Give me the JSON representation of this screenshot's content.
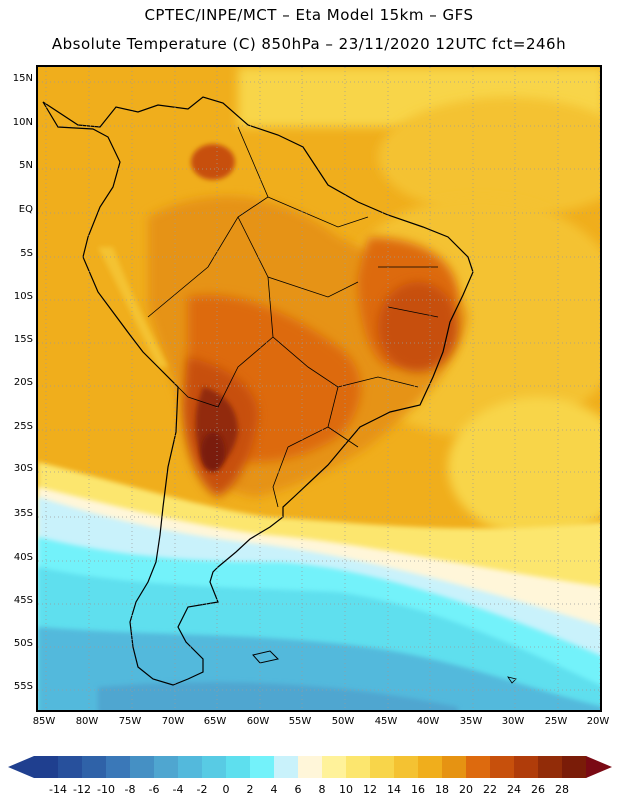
{
  "title": {
    "line1": "CPTEC/INPE/MCT –  Eta Model 15km – GFS",
    "line2": "Absolute Temperature (C) 850hPa – 23/11/2020 12UTC fct=246h"
  },
  "y_axis_labels": [
    "15N",
    "10N",
    "5N",
    "EQ",
    "5S",
    "10S",
    "15S",
    "20S",
    "25S",
    "30S",
    "35S",
    "40S",
    "45S",
    "50S",
    "55S"
  ],
  "x_axis_labels": [
    "85W",
    "80W",
    "75W",
    "70W",
    "65W",
    "60W",
    "55W",
    "50W",
    "45W",
    "40W",
    "35W",
    "30W",
    "25W",
    "20W"
  ],
  "colorbar": {
    "labels": [
      "-14",
      "-12",
      "-10",
      "-8",
      "-6",
      "-4",
      "-2",
      "0",
      "2",
      "4",
      "6",
      "8",
      "10",
      "12",
      "14",
      "16",
      "18",
      "20",
      "22",
      "24",
      "26",
      "28"
    ],
    "colors": [
      "#1f3f8f",
      "#27509c",
      "#2f62a8",
      "#3a78b8",
      "#4590c4",
      "#4fa6d0",
      "#53b9dc",
      "#58cbe4",
      "#5edfee",
      "#73f2fa",
      "#c9f2fb",
      "#fff6d9",
      "#fff29a",
      "#fce66e",
      "#f8d54a",
      "#f4c232",
      "#f0ae1c",
      "#e69312",
      "#dd6a0e",
      "#c7500c",
      "#b03c0a",
      "#922c08",
      "#7a1c08"
    ],
    "under_color": "#1f3f8f",
    "over_color": "#7a0a14"
  },
  "colors": {
    "map_background": "#f2b300",
    "coastline": "#000000",
    "grid": "#9a9a9a"
  }
}
